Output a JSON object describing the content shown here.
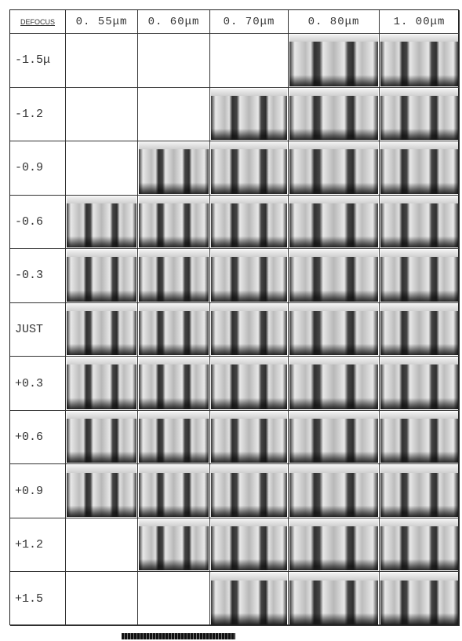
{
  "table": {
    "header": [
      "DEFOCUS",
      "0. 55μm",
      "0. 60μm",
      "0. 70μm",
      "0. 80μm",
      "1. 00μm"
    ],
    "rows": [
      "-1.5μ",
      "-1.2",
      "-0.9",
      "-0.6",
      "-0.3",
      "JUST",
      "+0.3",
      "+0.6",
      "+0.9",
      "+1.2",
      "+1.5"
    ]
  }
}
